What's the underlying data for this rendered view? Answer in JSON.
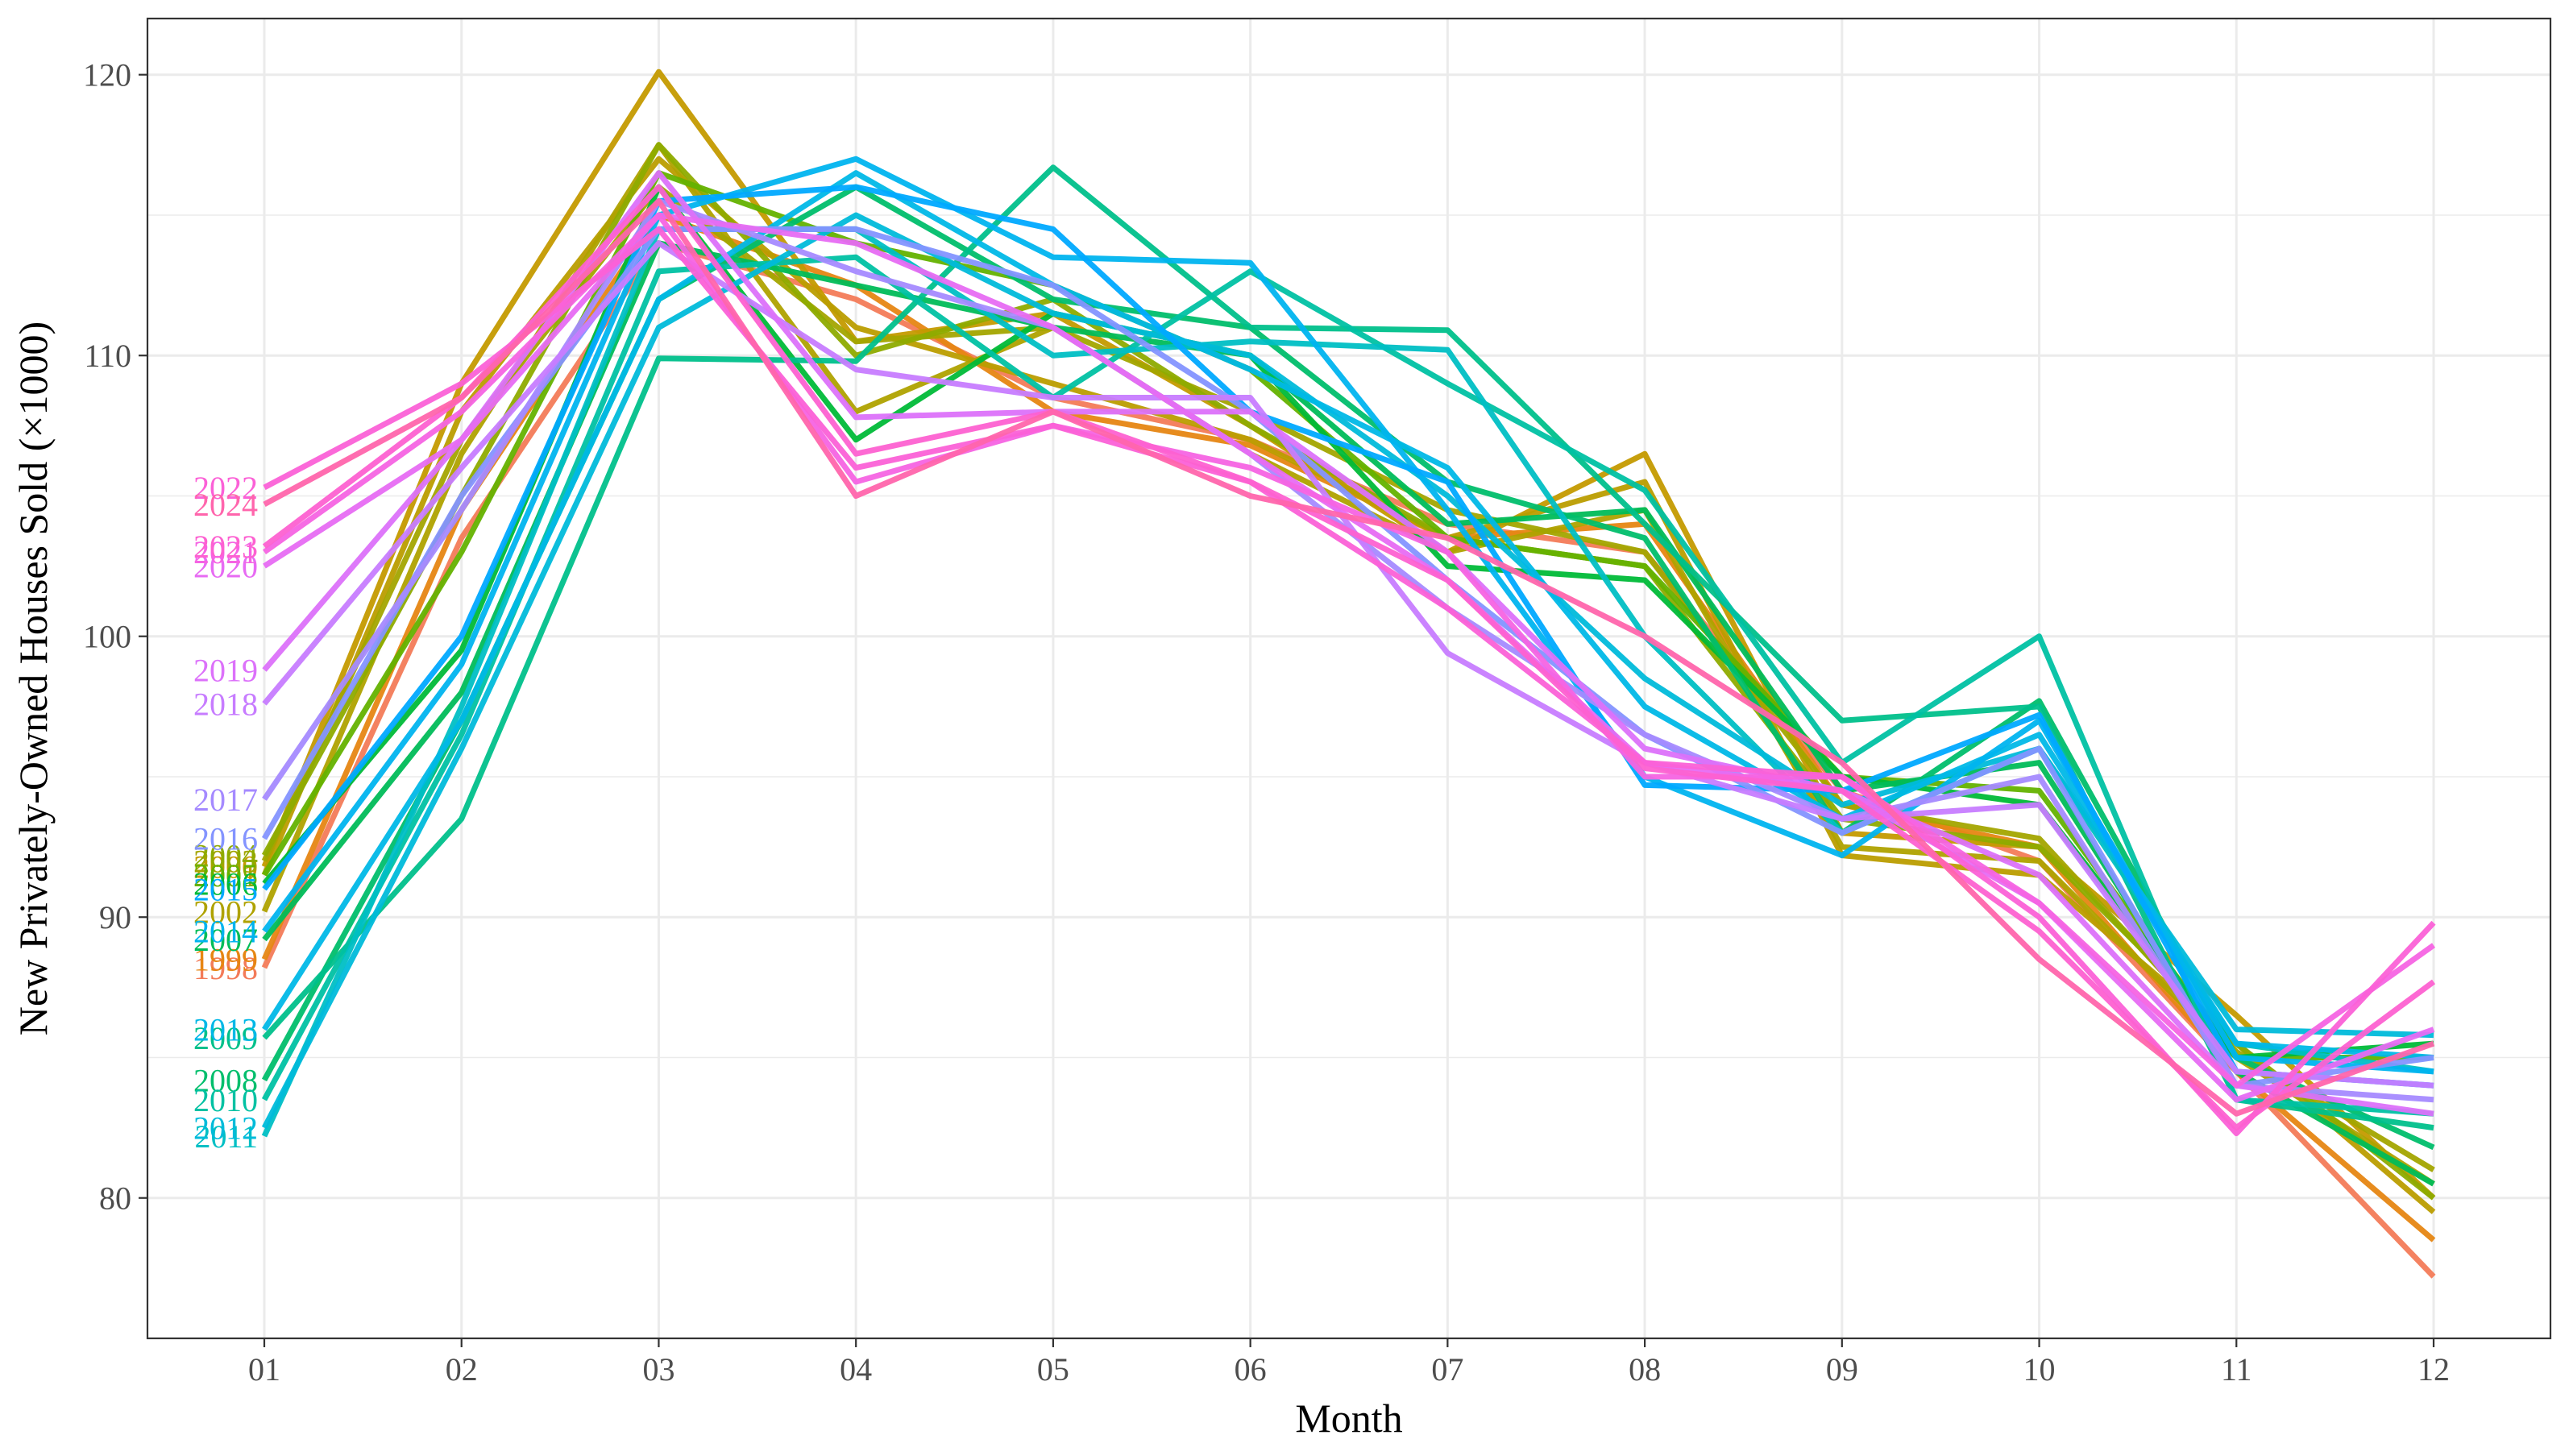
{
  "chart_data": {
    "type": "line",
    "title": "",
    "xlabel": "Month",
    "ylabel": "New Privately-Owned Houses Sold (×1000)",
    "categories": [
      "01",
      "02",
      "03",
      "04",
      "05",
      "06",
      "07",
      "08",
      "09",
      "10",
      "11",
      "12"
    ],
    "ylim": [
      75,
      122
    ],
    "yticks": [
      80,
      90,
      100,
      110,
      120
    ],
    "grid": true,
    "legend": "none (series labels printed at left of January values)",
    "series": [
      {
        "name": "1998",
        "color": "#F37B59",
        "values": [
          88.2,
          103.5,
          114.0,
          112.0,
          108.5,
          107.0,
          104.0,
          103.0,
          94.5,
          92.0,
          84.5,
          77.2
        ]
      },
      {
        "name": "1999",
        "color": "#E68613",
        "values": [
          88.5,
          104.5,
          115.0,
          112.5,
          108.0,
          106.8,
          103.5,
          104.0,
          94.0,
          92.5,
          84.5,
          78.5
        ]
      },
      {
        "name": "2000",
        "color": "#C49A00",
        "values": [
          91.8,
          109.0,
          120.1,
          110.5,
          111.5,
          107.5,
          103.0,
          106.5,
          93.0,
          92.5,
          86.5,
          80.0
        ]
      },
      {
        "name": "2001",
        "color": "#BB9D00",
        "values": [
          91.5,
          108.0,
          117.0,
          111.0,
          109.0,
          107.0,
          103.5,
          105.5,
          92.2,
          91.5,
          85.5,
          79.5
        ]
      },
      {
        "name": "2002",
        "color": "#AFA200",
        "values": [
          90.2,
          106.5,
          117.5,
          108.0,
          111.0,
          106.5,
          103.0,
          104.5,
          92.5,
          92.0,
          85.0,
          80.5
        ]
      },
      {
        "name": "2003",
        "color": "#A3A500",
        "values": [
          92.0,
          107.0,
          116.0,
          110.5,
          111.0,
          108.0,
          104.5,
          103.0,
          94.0,
          92.8,
          85.2,
          81.0
        ]
      },
      {
        "name": "2004",
        "color": "#8EAB00",
        "values": [
          92.2,
          105.0,
          117.5,
          110.0,
          112.0,
          107.5,
          103.5,
          102.5,
          93.5,
          92.5,
          85.5,
          80.0
        ]
      },
      {
        "name": "2005",
        "color": "#64B200",
        "values": [
          91.5,
          103.0,
          116.5,
          114.0,
          112.5,
          109.5,
          103.5,
          102.5,
          95.0,
          94.5,
          85.0,
          85.0
        ]
      },
      {
        "name": "2006",
        "color": "#00BA38",
        "values": [
          91.2,
          99.5,
          116.0,
          107.0,
          111.5,
          110.0,
          102.5,
          102.0,
          95.0,
          94.0,
          85.0,
          85.5
        ]
      },
      {
        "name": "2007",
        "color": "#00BC59",
        "values": [
          89.2,
          98.0,
          114.0,
          112.5,
          111.0,
          110.0,
          104.0,
          104.5,
          94.5,
          95.5,
          84.5,
          80.5
        ]
      },
      {
        "name": "2008",
        "color": "#00BE6C",
        "values": [
          84.2,
          97.0,
          112.0,
          116.0,
          112.0,
          111.0,
          105.5,
          103.5,
          93.0,
          97.7,
          85.0,
          81.8
        ]
      },
      {
        "name": "2009",
        "color": "#00C08B",
        "values": [
          85.7,
          93.5,
          109.9,
          109.8,
          116.7,
          111.0,
          110.9,
          104.0,
          97.0,
          97.5,
          83.5,
          82.5
        ]
      },
      {
        "name": "2010",
        "color": "#00C1A3",
        "values": [
          83.5,
          96.5,
          113.0,
          113.5,
          108.5,
          113.0,
          109.0,
          105.2,
          95.5,
          100.0,
          83.5,
          83.0
        ]
      },
      {
        "name": "2011",
        "color": "#00BFC4",
        "values": [
          82.2,
          97.5,
          114.5,
          114.5,
          110.0,
          110.5,
          110.2,
          100.0,
          93.0,
          96.0,
          85.5,
          84.5
        ]
      },
      {
        "name": "2012",
        "color": "#00BBDA",
        "values": [
          82.5,
          96.0,
          111.0,
          115.0,
          111.5,
          110.0,
          105.0,
          98.5,
          94.0,
          96.0,
          86.0,
          85.8
        ]
      },
      {
        "name": "2013",
        "color": "#00B8E7",
        "values": [
          86.0,
          97.0,
          112.0,
          116.5,
          112.5,
          109.5,
          106.0,
          97.5,
          93.5,
          96.5,
          85.5,
          85.0
        ]
      },
      {
        "name": "2014",
        "color": "#00B4EF",
        "values": [
          89.5,
          99.0,
          115.0,
          117.0,
          113.5,
          113.3,
          104.5,
          95.0,
          92.2,
          97.0,
          85.0,
          84.5
        ]
      },
      {
        "name": "2015",
        "color": "#00A9FF",
        "values": [
          91.0,
          100.0,
          115.5,
          116.0,
          114.5,
          108.0,
          105.5,
          94.7,
          94.5,
          97.2,
          84.5,
          84.0
        ]
      },
      {
        "name": "2016",
        "color": "#8494FF",
        "values": [
          92.8,
          105.0,
          114.5,
          114.5,
          112.5,
          108.0,
          102.0,
          96.5,
          93.0,
          96.0,
          84.0,
          85.0
        ]
      },
      {
        "name": "2017",
        "color": "#A58AFF",
        "values": [
          94.2,
          104.5,
          115.5,
          113.0,
          111.0,
          106.5,
          101.0,
          96.5,
          93.5,
          95.0,
          84.0,
          83.5
        ]
      },
      {
        "name": "2018",
        "color": "#C77CFF",
        "values": [
          97.6,
          106.0,
          114.0,
          109.5,
          108.5,
          108.5,
          99.4,
          95.5,
          93.5,
          94.0,
          84.5,
          84.0
        ]
      },
      {
        "name": "2019",
        "color": "#DC71FA",
        "values": [
          98.8,
          107.0,
          116.5,
          107.8,
          108.0,
          108.0,
          103.0,
          96.0,
          94.5,
          91.5,
          84.0,
          83.0
        ]
      },
      {
        "name": "2020",
        "color": "#E76BF3",
        "values": [
          102.5,
          107.0,
          115.0,
          114.0,
          111.0,
          106.5,
          102.0,
          95.5,
          94.5,
          90.5,
          83.5,
          86.0
        ]
      },
      {
        "name": "2021",
        "color": "#F564E3",
        "values": [
          103.0,
          108.0,
          115.0,
          105.5,
          107.5,
          106.0,
          103.0,
          95.0,
          95.0,
          90.5,
          84.0,
          89.0
        ]
      },
      {
        "name": "2022",
        "color": "#FB61D7",
        "values": [
          105.3,
          109.0,
          114.5,
          106.0,
          107.5,
          105.5,
          101.0,
          95.5,
          95.0,
          90.0,
          82.3,
          89.8
        ]
      },
      {
        "name": "2023",
        "color": "#FD61D1",
        "values": [
          103.2,
          108.5,
          116.0,
          106.5,
          108.0,
          105.5,
          102.0,
          95.3,
          94.5,
          89.5,
          82.5,
          87.7
        ]
      },
      {
        "name": "2024",
        "color": "#FF65AC",
        "values": [
          104.7,
          108.5,
          115.5,
          105.0,
          108.0,
          105.0,
          103.5,
          100.0,
          95.5,
          88.5,
          83.0,
          85.5
        ]
      }
    ]
  }
}
